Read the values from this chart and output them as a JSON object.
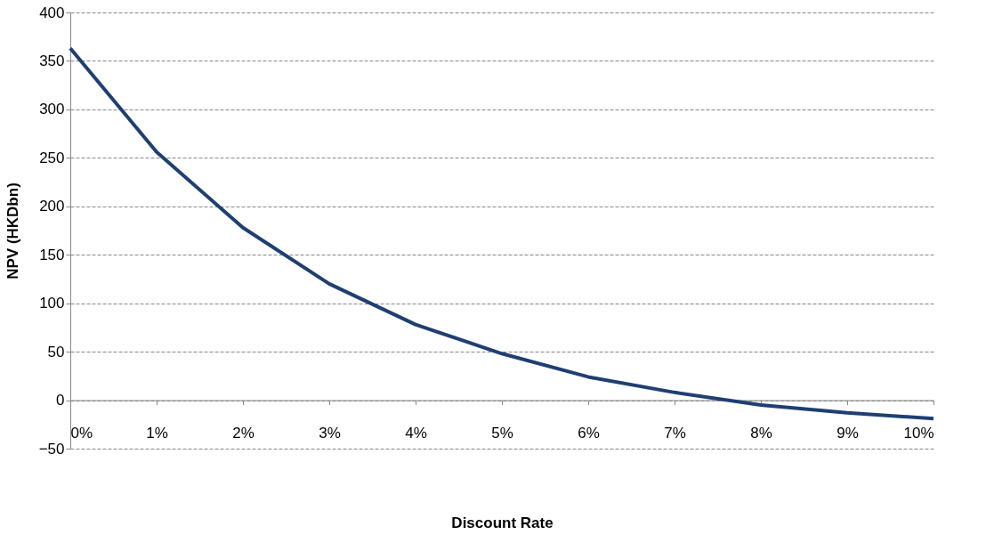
{
  "chart_data": {
    "type": "line",
    "xlabel": "Discount Rate",
    "ylabel": "NPV (HKDbn)",
    "x": [
      0,
      1,
      2,
      3,
      4,
      5,
      6,
      7,
      8,
      9,
      10
    ],
    "series": [
      {
        "color": "#1f3f73",
        "values": [
          363,
          256,
          178,
          120,
          78,
          48,
          24,
          8,
          -5,
          -13,
          -19
        ]
      }
    ],
    "xlim": [
      0,
      10
    ],
    "xticks": [
      {
        "value": 0,
        "label": "0%"
      },
      {
        "value": 1,
        "label": "1%"
      },
      {
        "value": 2,
        "label": "2%"
      },
      {
        "value": 3,
        "label": "3%"
      },
      {
        "value": 4,
        "label": "4%"
      },
      {
        "value": 5,
        "label": "5%"
      },
      {
        "value": 6,
        "label": "6%"
      },
      {
        "value": 7,
        "label": "7%"
      },
      {
        "value": 8,
        "label": "8%"
      },
      {
        "value": 9,
        "label": "9%"
      },
      {
        "value": 10,
        "label": "10%"
      }
    ],
    "ylim": [
      -50,
      400
    ],
    "yticks": [
      -50,
      0,
      50,
      100,
      150,
      200,
      250,
      300,
      350,
      400
    ],
    "grid": "y",
    "marker": "none",
    "line_style": "solid"
  }
}
